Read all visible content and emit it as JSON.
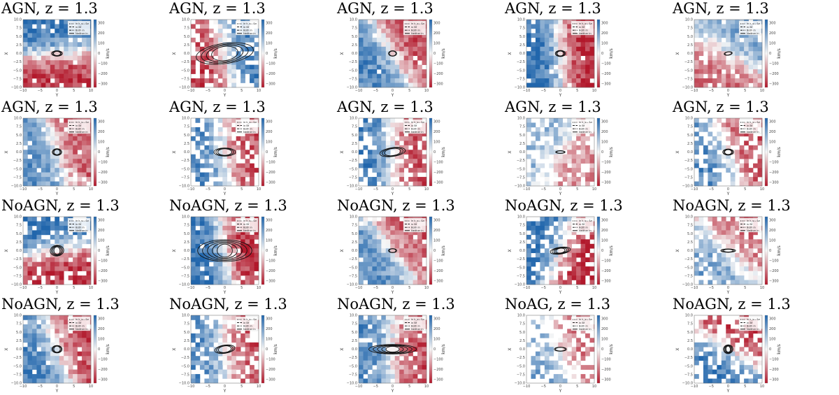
{
  "figure": {
    "rows": 4,
    "cols": 5
  },
  "chart_data": {
    "type": "heatmap",
    "description_units": "line-of-sight velocity maps",
    "xlabel": "Y",
    "ylabel": "X",
    "colorbar_label": "km/s",
    "colorbar_ticks": [
      "300",
      "200",
      "100",
      "0",
      "−100",
      "−200",
      "−300"
    ],
    "x_ticks": [
      "−10",
      "−5",
      "0",
      "5",
      "10"
    ],
    "y_ticks": [
      "10.0",
      "7.5",
      "5.0",
      "2.5",
      "0.0",
      "−2.5",
      "−5.0",
      "−7.5",
      "−10.0"
    ],
    "xlim": [
      -10,
      10
    ],
    "ylim": [
      -10,
      10
    ],
    "clim": [
      -350,
      350
    ],
    "legend": [
      "in k_s₁₅ &n",
      "in Bf",
      "Both in",
      "Neither in"
    ],
    "colors": {
      "positive": "#2166ac",
      "mid": "#f7f7f7",
      "negative": "#b2182b"
    },
    "panels": [
      {
        "title": "AGN, z = 1.3",
        "angle": 95,
        "amp": 300,
        "hole": 0.05,
        "ell": 3,
        "er": 1.6,
        "eb": 0.8
      },
      {
        "title": "AGN, z = 1.3",
        "angle": 15,
        "amp": 280,
        "hole": 0.3,
        "ell": 4,
        "er": 8.5,
        "eb": 3.0
      },
      {
        "title": "AGN, z = 1.3",
        "angle": 210,
        "amp": 260,
        "hole": 0.05,
        "ell": 2,
        "er": 1.2,
        "eb": 0.8
      },
      {
        "title": "AGN, z = 1.3",
        "angle": 185,
        "amp": 320,
        "hole": 0.05,
        "ell": 3,
        "er": 1.5,
        "eb": 0.9
      },
      {
        "title": "AGN, z = 1.3",
        "angle": 60,
        "amp": 200,
        "hole": 0.1,
        "ell": 2,
        "er": 1.2,
        "eb": 0.5
      },
      {
        "title": "AGN, z = 1.3",
        "angle": 200,
        "amp": 240,
        "hole": 0.05,
        "ell": 3,
        "er": 1.4,
        "eb": 1.0
      },
      {
        "title": "AGN, z = 1.3",
        "angle": 185,
        "amp": 260,
        "hole": 0.35,
        "ell": 3,
        "er": 3.2,
        "eb": 1.2
      },
      {
        "title": "AGN, z = 1.3",
        "angle": 180,
        "amp": 280,
        "hole": 0.25,
        "ell": 3,
        "er": 3.8,
        "eb": 1.3
      },
      {
        "title": "AGN, z = 1.3",
        "angle": 150,
        "amp": 160,
        "hole": 0.4,
        "ell": 2,
        "er": 1.4,
        "eb": 0.4
      },
      {
        "title": "AGN, z = 1.3",
        "angle": 200,
        "amp": 260,
        "hole": 0.4,
        "ell": 3,
        "er": 1.6,
        "eb": 0.9
      },
      {
        "title": "NoAGN, z = 1.3",
        "angle": 100,
        "amp": 320,
        "hole": 0.15,
        "ell": 4,
        "er": 2.0,
        "eb": 1.6
      },
      {
        "title": "NoAGN, z = 1.3",
        "angle": 190,
        "amp": 320,
        "hole": 0.1,
        "ell": 5,
        "er": 8.0,
        "eb": 3.2
      },
      {
        "title": "NoAGN, z = 1.3",
        "angle": 215,
        "amp": 240,
        "hole": 0.05,
        "ell": 2,
        "er": 1.2,
        "eb": 0.6
      },
      {
        "title": "NoAGN, z = 1.3",
        "angle": 160,
        "amp": 320,
        "hole": 0.3,
        "ell": 4,
        "er": 3.0,
        "eb": 1.0
      },
      {
        "title": "NoAGN, z = 1.3",
        "angle": 225,
        "amp": 200,
        "hole": 0.25,
        "ell": 3,
        "er": 2.2,
        "eb": 0.5
      },
      {
        "title": "NoAGN, z = 1.3",
        "angle": 200,
        "amp": 260,
        "hole": 0.1,
        "ell": 3,
        "er": 1.5,
        "eb": 1.1
      },
      {
        "title": "NoAGN, z = 1.3",
        "angle": 185,
        "amp": 250,
        "hole": 0.3,
        "ell": 3,
        "er": 3.0,
        "eb": 1.2
      },
      {
        "title": "NoAGN, z = 1.3",
        "angle": 180,
        "amp": 260,
        "hole": 0.15,
        "ell": 5,
        "er": 7.0,
        "eb": 1.4
      },
      {
        "title": "NoAG, z = 1.3",
        "angle": 200,
        "amp": 200,
        "hole": 0.55,
        "ell": 2,
        "er": 1.8,
        "eb": 0.6
      },
      {
        "title": "NoAGN, z = 1.3",
        "angle": 240,
        "amp": 300,
        "hole": 0.4,
        "ell": 4,
        "er": 1.4,
        "eb": 1.3
      }
    ]
  }
}
